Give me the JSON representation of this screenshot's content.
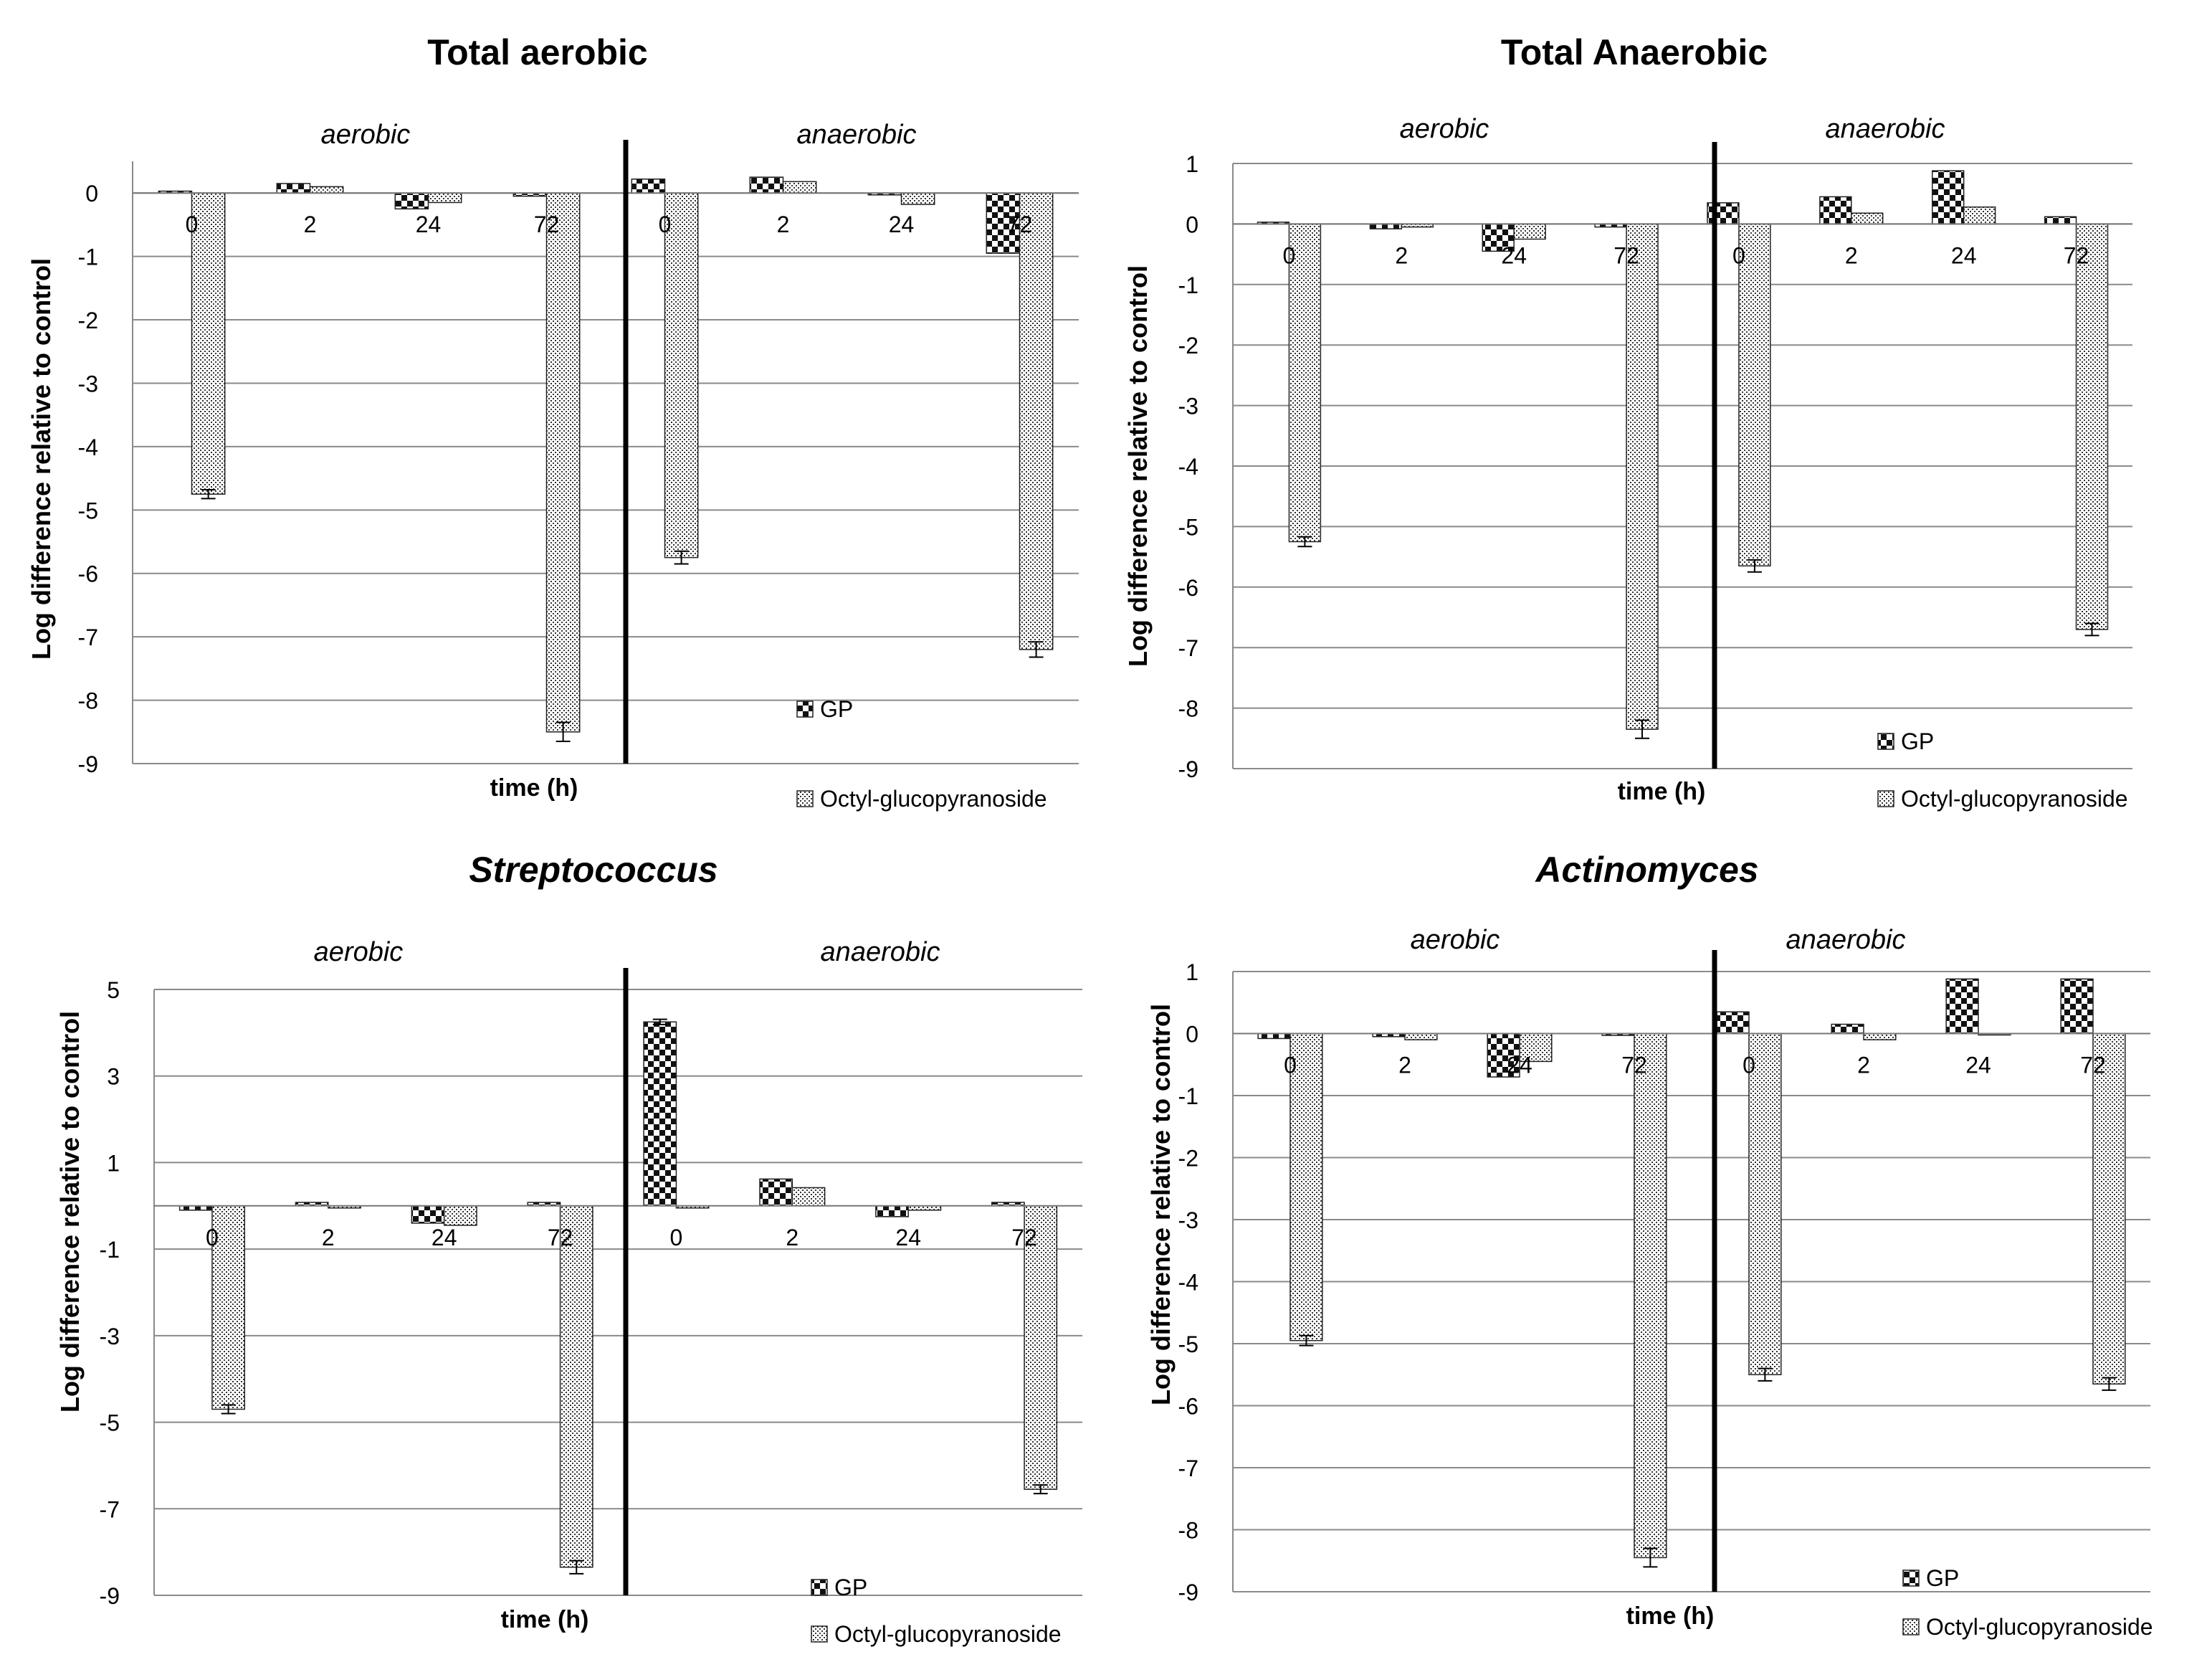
{
  "figure": {
    "categories": [
      "0",
      "2",
      "24",
      "72",
      "0",
      "2",
      "24",
      "72"
    ],
    "group_labels": [
      "aerobic",
      "anaerobic"
    ],
    "xlabel": "time (h)",
    "ylabel": "Log difference relative to control",
    "legend": [
      "GP",
      "Octyl-glucopyranoside"
    ]
  },
  "chart_data": [
    {
      "type": "bar",
      "title": "Total aerobic",
      "title_italic": false,
      "xlabel": "time (h)",
      "ylabel": "Log difference relative to control",
      "categories": [
        "0",
        "2",
        "24",
        "72",
        "0",
        "2",
        "24",
        "72"
      ],
      "groups": [
        "aerobic",
        "anaerobic"
      ],
      "ylim": [
        -9,
        0.5
      ],
      "yticks": [
        0,
        -1,
        -2,
        -3,
        -4,
        -5,
        -6,
        -7,
        -8,
        -9
      ],
      "series": [
        {
          "name": "GP",
          "values": [
            0.03,
            0.15,
            -0.25,
            -0.05,
            0.22,
            0.25,
            -0.03,
            -0.95
          ],
          "errors": [
            0,
            0,
            0,
            0,
            0,
            0,
            0,
            0
          ]
        },
        {
          "name": "Octyl-glucopyranoside",
          "values": [
            -4.75,
            0.1,
            -0.15,
            -8.5,
            -5.75,
            0.18,
            -0.18,
            -7.2
          ],
          "errors": [
            0.07,
            0,
            0,
            0.15,
            0.1,
            0,
            0,
            0.12
          ]
        }
      ],
      "legend": "bottom-right"
    },
    {
      "type": "bar",
      "title": "Total Anaerobic",
      "title_italic": false,
      "xlabel": "time (h)",
      "ylabel": "Log difference relative to control",
      "categories": [
        "0",
        "2",
        "24",
        "72",
        "0",
        "2",
        "24",
        "72"
      ],
      "groups": [
        "aerobic",
        "anaerobic"
      ],
      "ylim": [
        -9,
        1
      ],
      "yticks": [
        1,
        0,
        -1,
        -2,
        -3,
        -4,
        -5,
        -6,
        -7,
        -8,
        -9
      ],
      "series": [
        {
          "name": "GP",
          "values": [
            0.03,
            -0.08,
            -0.45,
            -0.05,
            0.35,
            0.45,
            0.88,
            0.12
          ],
          "errors": [
            0,
            0,
            0,
            0,
            0,
            0,
            0,
            0
          ]
        },
        {
          "name": "Octyl-glucopyranoside",
          "values": [
            -5.25,
            -0.05,
            -0.25,
            -8.35,
            -5.65,
            0.18,
            0.28,
            -6.7
          ],
          "errors": [
            0.08,
            0,
            0,
            0.15,
            0.1,
            0,
            0,
            0.1
          ]
        }
      ],
      "legend": "bottom-right"
    },
    {
      "type": "bar",
      "title": "Streptococcus",
      "title_italic": true,
      "xlabel": "time (h)",
      "ylabel": "Log difference relative to control",
      "categories": [
        "0",
        "2",
        "24",
        "72",
        "0",
        "2",
        "24",
        "72"
      ],
      "groups": [
        "aerobic",
        "anaerobic"
      ],
      "ylim": [
        -9,
        5
      ],
      "yticks": [
        5,
        3,
        1,
        -1,
        -3,
        -5,
        -7,
        -9
      ],
      "series": [
        {
          "name": "GP",
          "values": [
            -0.1,
            0.08,
            -0.4,
            0.08,
            4.25,
            0.62,
            -0.25,
            0.08
          ],
          "errors": [
            0,
            0,
            0,
            0,
            0.06,
            0,
            0,
            0
          ]
        },
        {
          "name": "Octyl-glucopyranoside",
          "values": [
            -4.7,
            -0.05,
            -0.45,
            -8.35,
            -0.05,
            0.42,
            -0.1,
            -6.55
          ],
          "errors": [
            0.1,
            0,
            0,
            0.15,
            0,
            0,
            0,
            0.1
          ]
        }
      ],
      "legend": "bottom-right"
    },
    {
      "type": "bar",
      "title": "Actinomyces",
      "title_italic": true,
      "xlabel": "time (h)",
      "ylabel": "Log difference relative to control",
      "categories": [
        "0",
        "2",
        "24",
        "72",
        "0",
        "2",
        "24",
        "72"
      ],
      "groups": [
        "aerobic",
        "anaerobic"
      ],
      "ylim": [
        -9,
        1
      ],
      "yticks": [
        1,
        0,
        -1,
        -2,
        -3,
        -4,
        -5,
        -6,
        -7,
        -8,
        -9
      ],
      "series": [
        {
          "name": "GP",
          "values": [
            -0.08,
            -0.05,
            -0.7,
            -0.03,
            0.35,
            0.15,
            0.88,
            0.88
          ],
          "errors": [
            0,
            0,
            0,
            0,
            0,
            0,
            0,
            0
          ]
        },
        {
          "name": "Octyl-glucopyranoside",
          "values": [
            -4.95,
            -0.1,
            -0.45,
            -8.45,
            -5.5,
            -0.1,
            0,
            -5.65
          ],
          "errors": [
            0.08,
            0,
            0,
            0.15,
            0.1,
            0,
            0,
            0.1
          ]
        }
      ],
      "legend": "bottom-right"
    }
  ]
}
